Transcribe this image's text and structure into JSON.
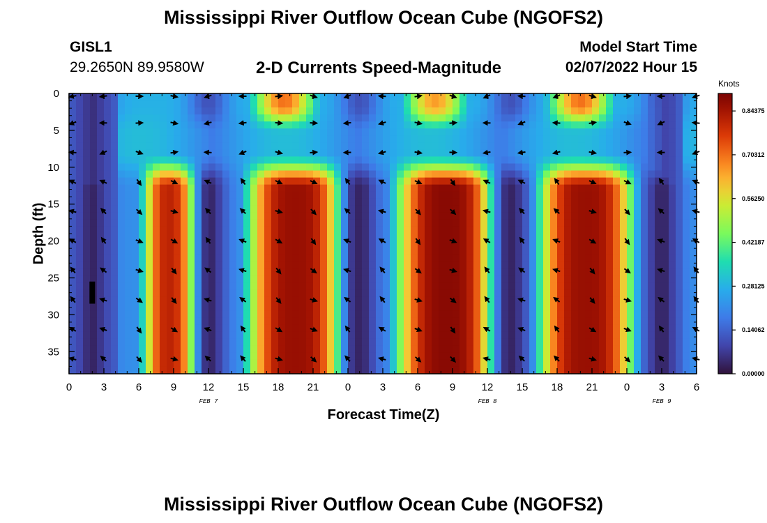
{
  "header": {
    "title": "Mississippi River Outflow Ocean Cube (NGOFS2)",
    "station": "GISL1",
    "coords": "29.2650N  89.9580W",
    "chart_title": "2-D Currents Speed-Magnitude",
    "start_label": "Model Start Time",
    "start_value": "02/07/2022 Hour 15"
  },
  "footer": {
    "title": "Mississippi River Outflow Ocean Cube (NGOFS2)"
  },
  "colors": {
    "axis": "#000000",
    "arrow": "#000000"
  },
  "chart_data": {
    "type": "heatmap",
    "title": "2-D Currents Speed-Magnitude",
    "xlabel": "Forecast Time(Z)",
    "ylabel": "Depth (ft)",
    "x_range_hours": [
      0,
      54
    ],
    "y_range_ft": [
      0,
      38
    ],
    "x_ticks": [
      {
        "hour": 0,
        "label": "0"
      },
      {
        "hour": 3,
        "label": "3"
      },
      {
        "hour": 6,
        "label": "6"
      },
      {
        "hour": 9,
        "label": "9"
      },
      {
        "hour": 12,
        "label": "12"
      },
      {
        "hour": 15,
        "label": "15"
      },
      {
        "hour": 18,
        "label": "18"
      },
      {
        "hour": 21,
        "label": "21"
      },
      {
        "hour": 24,
        "label": "0"
      },
      {
        "hour": 27,
        "label": "3"
      },
      {
        "hour": 30,
        "label": "6"
      },
      {
        "hour": 33,
        "label": "9"
      },
      {
        "hour": 36,
        "label": "12"
      },
      {
        "hour": 39,
        "label": "15"
      },
      {
        "hour": 42,
        "label": "18"
      },
      {
        "hour": 45,
        "label": "21"
      },
      {
        "hour": 48,
        "label": "0"
      },
      {
        "hour": 51,
        "label": "3"
      },
      {
        "hour": 54,
        "label": "6"
      }
    ],
    "y_ticks": [
      {
        "value": 0,
        "label": "0"
      },
      {
        "value": 5,
        "label": "5"
      },
      {
        "value": 10,
        "label": "10"
      },
      {
        "value": 15,
        "label": "15"
      },
      {
        "value": 20,
        "label": "20"
      },
      {
        "value": 25,
        "label": "25"
      },
      {
        "value": 30,
        "label": "30"
      },
      {
        "value": 35,
        "label": "35"
      }
    ],
    "date_labels": [
      {
        "hour": 12,
        "label": "FEB 7"
      },
      {
        "hour": 36,
        "label": "FEB 8"
      },
      {
        "hour": 51,
        "label": "FEB 9"
      }
    ],
    "colorbar": {
      "units": "Knots",
      "min": 0.0,
      "max": 0.9,
      "ticks": [
        {
          "value": 0.0,
          "label": "0.00000"
        },
        {
          "value": 0.140625,
          "label": "0.14062"
        },
        {
          "value": 0.28125,
          "label": "0.28125"
        },
        {
          "value": 0.421875,
          "label": "0.42187"
        },
        {
          "value": 0.5625,
          "label": "0.56250"
        },
        {
          "value": 0.703125,
          "label": "0.70312"
        },
        {
          "value": 0.84375,
          "label": "0.84375"
        }
      ]
    },
    "speed_field": {
      "description": "Peak speeds (knots) of the main ebb/flood pulses, deep layer 11-38 ft",
      "pulses": [
        {
          "center_hour": 9.0,
          "half_width_hours": 2.8,
          "peak": 0.82,
          "depth_range_ft": [
            11,
            38
          ]
        },
        {
          "center_hour": 19.5,
          "half_width_hours": 4.4,
          "peak": 0.86,
          "depth_range_ft": [
            11,
            38
          ]
        },
        {
          "center_hour": 32.5,
          "half_width_hours": 4.6,
          "peak": 0.88,
          "depth_range_ft": [
            11,
            38
          ]
        },
        {
          "center_hour": 44.5,
          "half_width_hours": 4.4,
          "peak": 0.86,
          "depth_range_ft": [
            11,
            38
          ]
        }
      ],
      "surface_pulses": [
        {
          "center_hour": 18.5,
          "peak": 0.7
        },
        {
          "center_hour": 31.5,
          "peak": 0.65
        },
        {
          "center_hour": 44.0,
          "peak": 0.7
        }
      ],
      "slack_hours": [
        2.0,
        12.0,
        25.0,
        38.0,
        51.0
      ]
    },
    "arrow_rows_ft": [
      0,
      4,
      8,
      12,
      16,
      20,
      24,
      28,
      32,
      36
    ],
    "arrow_cols_hours": [
      0,
      3,
      6,
      9,
      12,
      15,
      18,
      21,
      24,
      27,
      30,
      33,
      36,
      39,
      42,
      45,
      48,
      51,
      54
    ],
    "marker": {
      "hour": 2.0,
      "depth_range_ft": [
        25.5,
        28.5
      ]
    }
  }
}
